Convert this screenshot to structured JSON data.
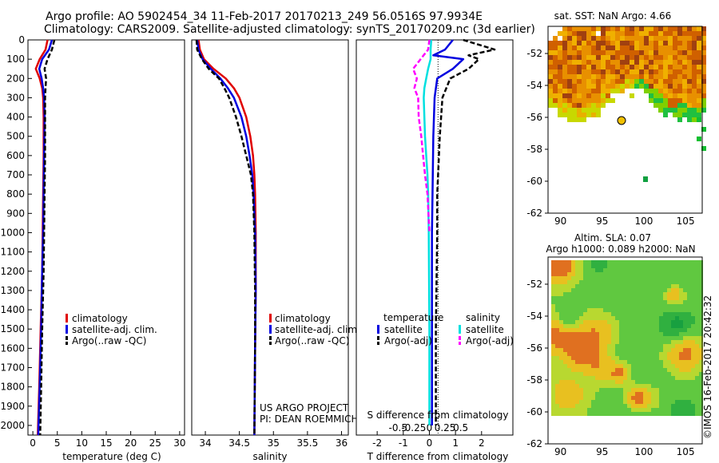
{
  "header": {
    "line1": "Argo profile: AO 5902454_34 11-Feb-2017 20170213_249 56.0516S 97.9934E",
    "line2": "Climatology: CARS2009. Satellite-adjusted climatology: synTS_20170209.nc (3d earlier)"
  },
  "credits": {
    "project": "US ARGO PROJECT",
    "pi": "PI: DEAN ROEMMICH",
    "stamp": "©IMOS 16-Feb-2017 20:42:32"
  },
  "colors": {
    "climatology": "#e00000",
    "satellite_adj": "#0000e0",
    "argo": "#000000",
    "salinity_sat": "#00e0e0",
    "salinity_argo": "#ff00ff"
  },
  "chart_data": [
    {
      "id": "temperature",
      "type": "line",
      "xlabel": "temperature (deg C)",
      "ylabel": "",
      "xlim": [
        -1,
        31
      ],
      "ylim": [
        2050,
        0
      ],
      "xticks": [
        0,
        5,
        10,
        15,
        20,
        25,
        30
      ],
      "yticks": [
        0,
        100,
        200,
        300,
        400,
        500,
        600,
        700,
        800,
        900,
        1000,
        1100,
        1200,
        1300,
        1400,
        1500,
        1600,
        1700,
        1800,
        1900,
        2000
      ],
      "legend": [
        "climatology",
        "satellite-adj. clim.",
        "Argo(..raw -QC)"
      ],
      "legend_position": "lower-middle",
      "series": [
        {
          "name": "climatology",
          "color": "#e00000",
          "style": "solid",
          "depth": [
            0,
            50,
            100,
            150,
            200,
            250,
            300,
            400,
            600,
            800,
            1000,
            1200,
            1500,
            1800,
            2050
          ],
          "values": [
            3.0,
            2.6,
            1.4,
            0.6,
            1.4,
            1.9,
            2.1,
            2.2,
            2.2,
            2.1,
            2.0,
            1.9,
            1.6,
            1.3,
            1.0
          ]
        },
        {
          "name": "satellite-adj. clim.",
          "color": "#0000e0",
          "style": "solid",
          "depth": [
            0,
            50,
            100,
            150,
            200,
            250,
            300,
            400,
            600,
            800,
            1000,
            1200,
            1500,
            1800,
            2050
          ],
          "values": [
            3.9,
            3.3,
            1.9,
            1.3,
            1.8,
            2.1,
            2.3,
            2.4,
            2.3,
            2.2,
            2.1,
            1.9,
            1.7,
            1.4,
            1.1
          ]
        },
        {
          "name": "Argo(..raw -QC)",
          "color": "#000000",
          "style": "dashed",
          "depth": [
            0,
            50,
            100,
            150,
            200,
            250,
            300,
            400,
            600,
            800,
            1000,
            1200,
            1500,
            1800,
            2050
          ],
          "values": [
            4.4,
            3.9,
            3.0,
            2.4,
            2.7,
            2.6,
            2.5,
            2.5,
            2.5,
            2.4,
            2.3,
            2.2,
            1.9,
            1.7,
            1.5
          ]
        }
      ]
    },
    {
      "id": "salinity",
      "type": "line",
      "xlabel": "salinity",
      "xlim": [
        33.8,
        36.1
      ],
      "ylim": [
        2050,
        0
      ],
      "xticks": [
        34,
        34.5,
        35,
        35.5,
        36
      ],
      "xticklabels": [
        "34",
        "34.5",
        "35",
        "35.5",
        "36"
      ],
      "legend": [
        "climatology",
        "satellite-adj. clim.",
        "Argo(..raw -QC)"
      ],
      "legend_position": "lower-right",
      "series": [
        {
          "name": "climatology",
          "color": "#e00000",
          "style": "solid",
          "depth": [
            0,
            50,
            100,
            150,
            200,
            250,
            300,
            400,
            500,
            600,
            700,
            800,
            1000,
            1300,
            1600,
            2050
          ],
          "values": [
            33.9,
            33.92,
            33.98,
            34.12,
            34.3,
            34.42,
            34.5,
            34.6,
            34.66,
            34.7,
            34.72,
            34.73,
            34.74,
            34.74,
            34.73,
            34.72
          ]
        },
        {
          "name": "satellite-adj. clim.",
          "color": "#0000e0",
          "style": "solid",
          "depth": [
            0,
            50,
            100,
            150,
            200,
            250,
            300,
            400,
            500,
            600,
            700,
            800,
            1000,
            1300,
            1600,
            2050
          ],
          "values": [
            33.88,
            33.9,
            33.96,
            34.08,
            34.22,
            34.33,
            34.42,
            34.53,
            34.6,
            34.65,
            34.69,
            34.71,
            34.73,
            34.74,
            34.73,
            34.72
          ]
        },
        {
          "name": "Argo(..raw -QC)",
          "color": "#000000",
          "style": "dashed",
          "depth": [
            0,
            50,
            100,
            150,
            200,
            250,
            300,
            400,
            500,
            600,
            700,
            800,
            1000,
            1300,
            1600,
            2050
          ],
          "values": [
            33.87,
            33.88,
            33.95,
            34.05,
            34.2,
            34.28,
            34.35,
            34.45,
            34.53,
            34.6,
            34.67,
            34.7,
            34.72,
            34.73,
            34.73,
            34.72
          ]
        }
      ]
    },
    {
      "id": "difference",
      "type": "line",
      "xlabel": "T difference from climatology",
      "top_label": "S difference from climatology",
      "xlim": [
        -2.8,
        3.2
      ],
      "ylim": [
        2050,
        0
      ],
      "xticks": [
        -2,
        -1,
        0,
        1,
        2
      ],
      "top_ticks": [
        -0.5,
        -0.25,
        0,
        0.25,
        0.5
      ],
      "top_ticklabels": [
        "-0.5",
        "-0.25",
        "0",
        "0.25",
        "0.5"
      ],
      "legend_headers": [
        "temperature",
        "salinity"
      ],
      "legend": [
        "satellite",
        "Argo(-adj)",
        "satellite",
        "Argo(-adj)"
      ],
      "series": [
        {
          "name": "temperature satellite",
          "color": "#0000e0",
          "style": "solid",
          "depth": [
            0,
            50,
            80,
            100,
            150,
            200,
            300,
            500,
            800,
            1000,
            1500,
            2000
          ],
          "values": [
            0.9,
            0.6,
            0.15,
            1.3,
            0.9,
            0.3,
            0.2,
            0.15,
            0.12,
            0.1,
            0.1,
            0.1
          ]
        },
        {
          "name": "temperature Argo(-adj)",
          "color": "#000000",
          "style": "dashed",
          "depth": [
            0,
            50,
            80,
            100,
            150,
            200,
            300,
            500,
            800,
            1000,
            1500,
            2000
          ],
          "values": [
            1.3,
            2.5,
            1.5,
            1.9,
            1.5,
            0.8,
            0.5,
            0.4,
            0.3,
            0.3,
            0.25,
            0.25
          ]
        },
        {
          "name": "salinity satellite",
          "color": "#00e0e0",
          "style": "solid",
          "depth": [
            0,
            50,
            100,
            150,
            200,
            250,
            300,
            400,
            500,
            600,
            700,
            800,
            1000,
            1500,
            2000
          ],
          "values": [
            0.03,
            0.02,
            0.02,
            -0.02,
            -0.05,
            -0.08,
            -0.09,
            -0.08,
            -0.07,
            -0.05,
            -0.03,
            -0.02,
            -0.01,
            0.0,
            0.0
          ]
        },
        {
          "name": "salinity Argo(-adj)",
          "color": "#ff00ff",
          "style": "dashed",
          "depth": [
            0,
            50,
            100,
            150,
            200,
            250,
            300,
            400,
            500,
            600,
            700,
            800,
            1000
          ],
          "values": [
            0.0,
            -0.02,
            -0.14,
            -0.26,
            -0.2,
            -0.24,
            -0.18,
            -0.17,
            -0.13,
            -0.1,
            -0.07,
            -0.03,
            0.0
          ]
        }
      ]
    },
    {
      "id": "sst_map",
      "type": "heatmap",
      "title": "sat. SST: NaN Argo: 4.66",
      "xlim": [
        88.5,
        107
      ],
      "ylim": [
        -62,
        -50.3
      ],
      "xticks": [
        90,
        95,
        100,
        105
      ],
      "yticks": [
        -52,
        -54,
        -56,
        -58,
        -60,
        -62
      ],
      "argo_position": {
        "lon": 97.99,
        "lat": -56.05
      }
    },
    {
      "id": "sla_map",
      "type": "heatmap",
      "title": "Altim. SLA: 0.07",
      "subtitle": "Argo h1000: 0.089 h2000: NaN",
      "xlim": [
        88.5,
        107
      ],
      "ylim": [
        -62,
        -50.3
      ],
      "xticks": [
        90,
        95,
        100,
        105
      ],
      "yticks": [
        -52,
        -54,
        -56,
        -58,
        -60,
        -62
      ]
    }
  ]
}
